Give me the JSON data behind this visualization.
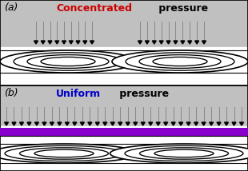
{
  "bg_color": "#c0c0c0",
  "panel_a_label": "(a)",
  "panel_b_label": "(b)",
  "title_a_word1": "Concentrated",
  "title_a_word1_color": "#cc0000",
  "title_a_word2": " pressure",
  "title_b_word1": "Uniform",
  "title_b_word1_color": "#0000cc",
  "title_b_word2": " pressure",
  "arrowhead_color": "black",
  "arrow_shaft_color": "#888888",
  "soft_layer_color": "#8800cc",
  "border_color": "black",
  "ellipse_color": "black",
  "white_fill": "#ffffff",
  "panel_sep_color": "black"
}
